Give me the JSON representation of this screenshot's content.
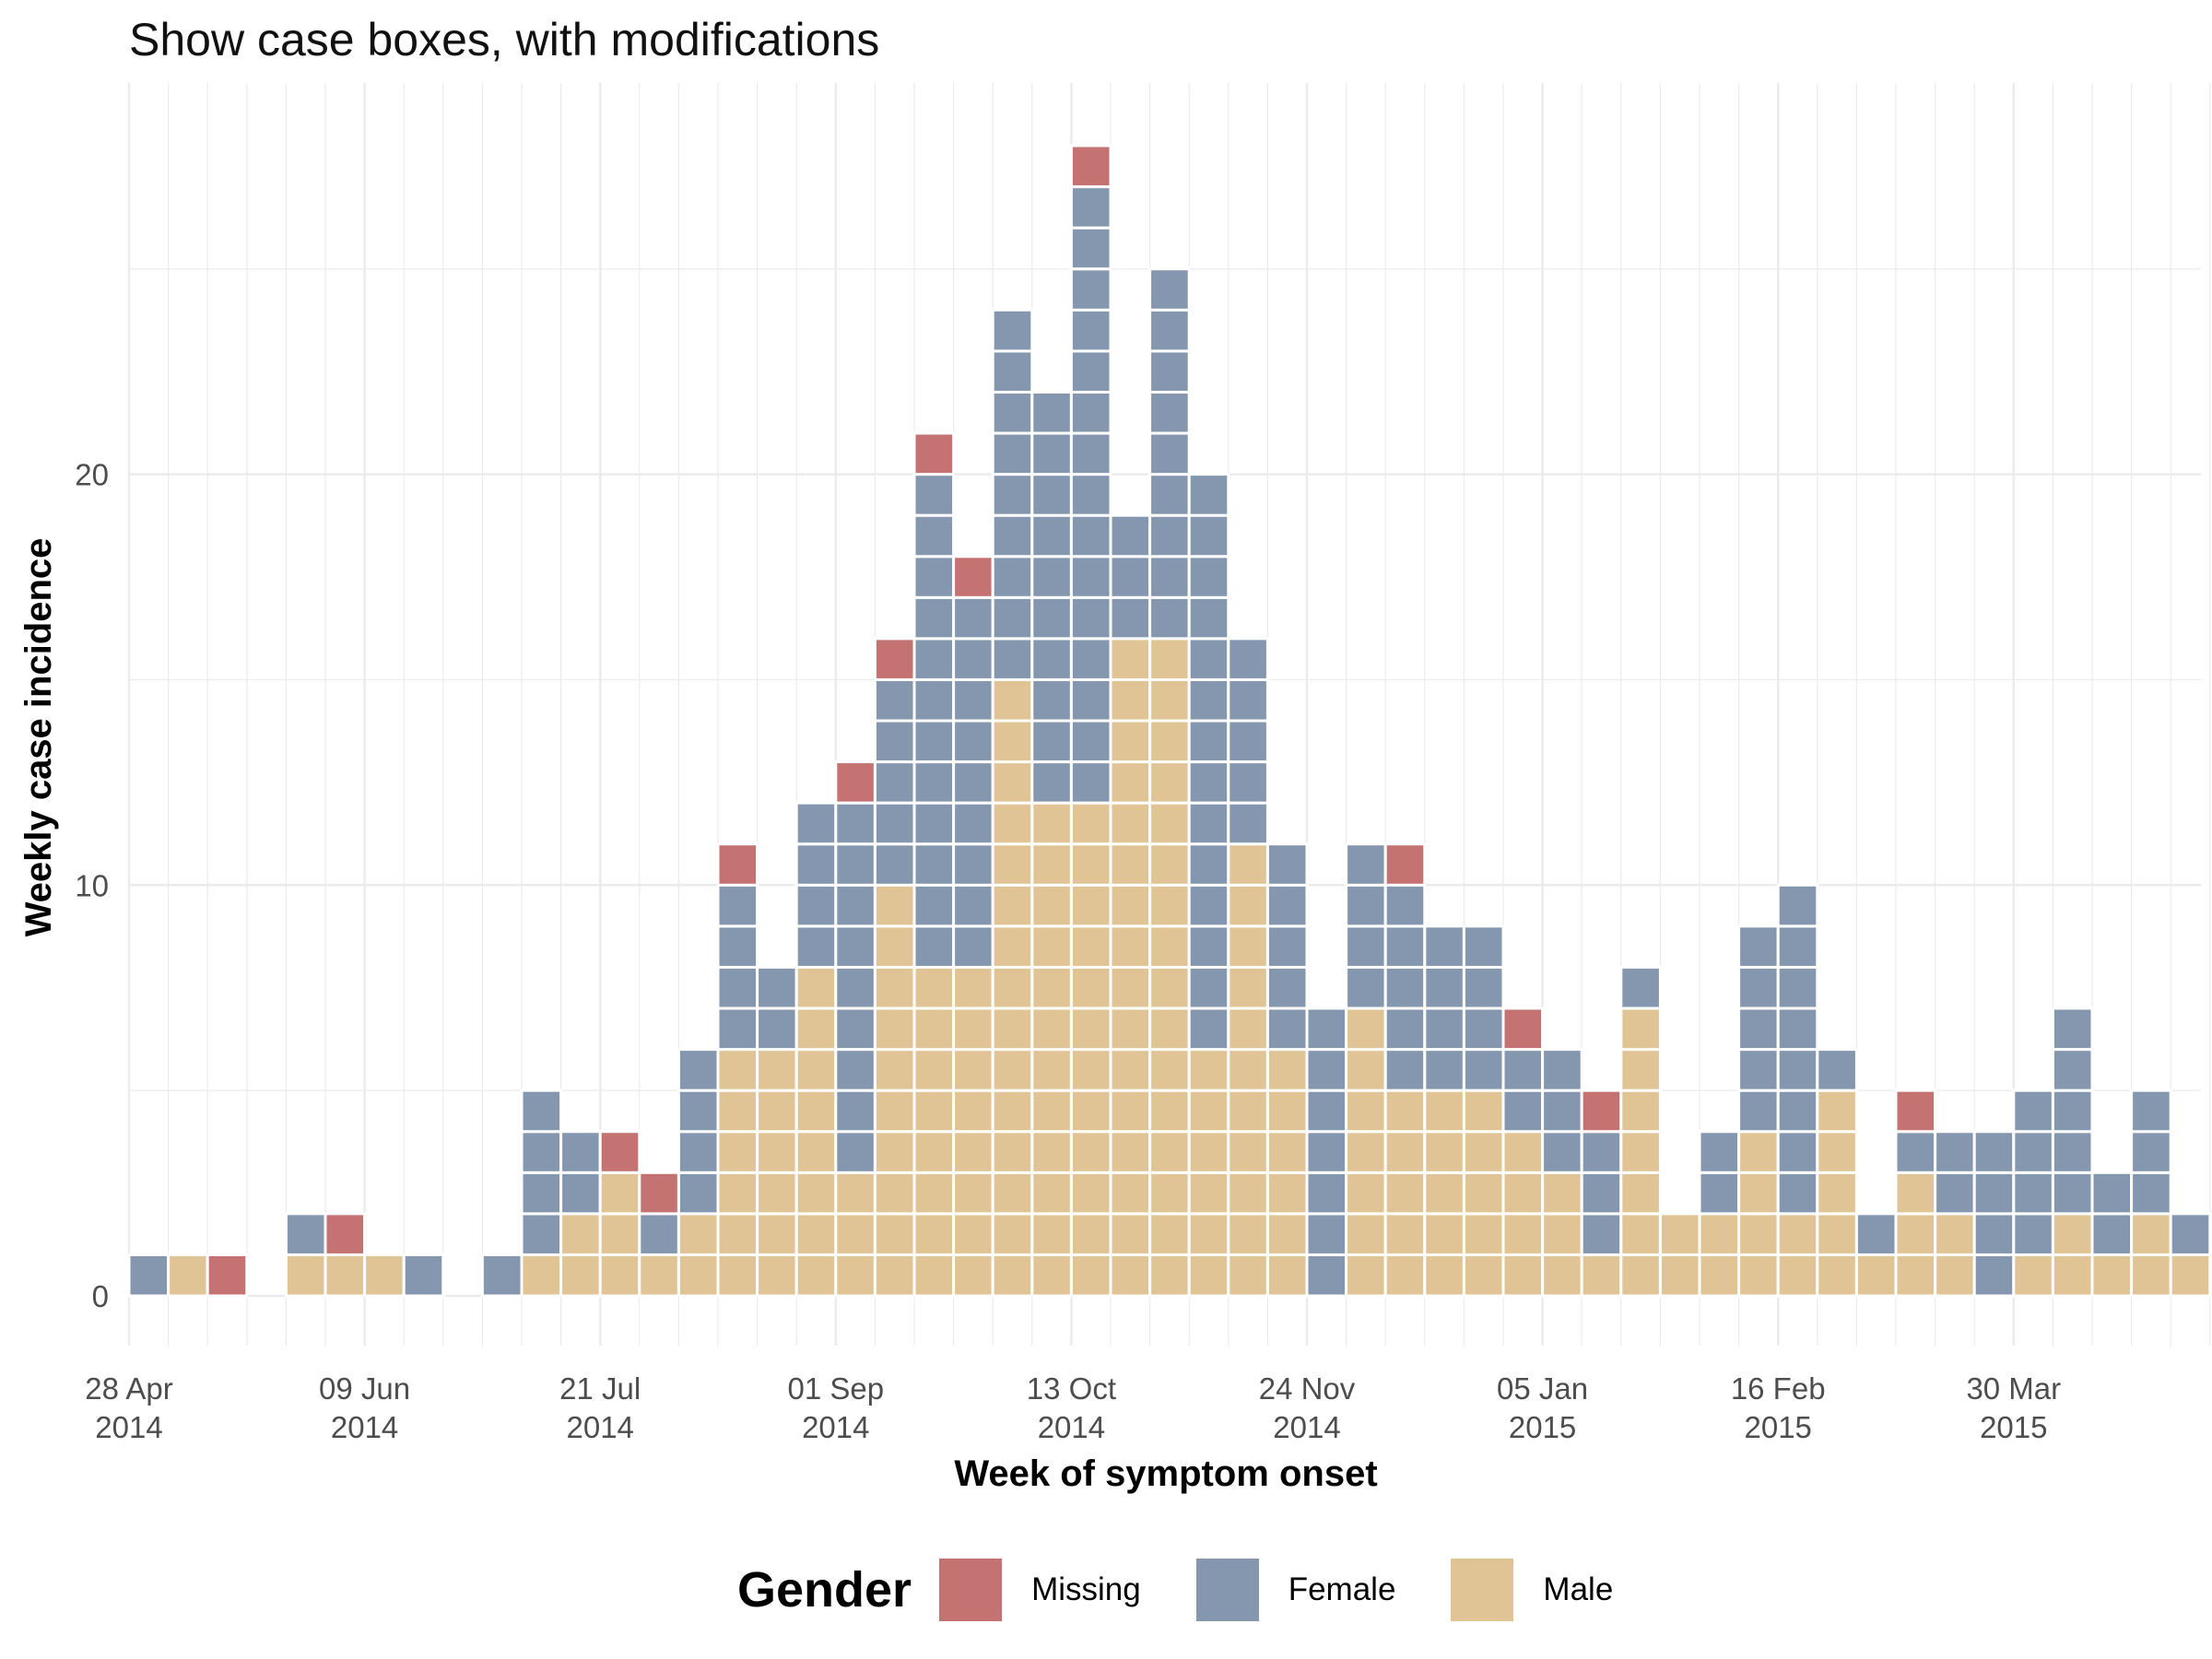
{
  "chart_data": {
    "type": "bar",
    "title": "Show case boxes, with modifications",
    "xlabel": "Week of symptom onset",
    "ylabel": "Weekly case incidence",
    "ylim": [
      0,
      28
    ],
    "y_ticks": [
      0,
      10,
      20
    ],
    "x_tick_labels": [
      {
        "week": 0,
        "line1": "28 Apr",
        "line2": "2014"
      },
      {
        "week": 6,
        "line1": "09 Jun",
        "line2": "2014"
      },
      {
        "week": 12,
        "line1": "21 Jul",
        "line2": "2014"
      },
      {
        "week": 18,
        "line1": "01 Sep",
        "line2": "2014"
      },
      {
        "week": 24,
        "line1": "13 Oct",
        "line2": "2014"
      },
      {
        "week": 30,
        "line1": "24 Nov",
        "line2": "2014"
      },
      {
        "week": 36,
        "line1": "05 Jan",
        "line2": "2015"
      },
      {
        "week": 42,
        "line1": "16 Feb",
        "line2": "2015"
      },
      {
        "week": 48,
        "line1": "30 Mar",
        "line2": "2015"
      }
    ],
    "first_week": "2014-04-28",
    "bar_width_days": 7,
    "legend": {
      "title": "Gender",
      "position": "bottom"
    },
    "grid": true,
    "series": [
      {
        "name": "Male",
        "color": "#E0C495",
        "values": [
          0,
          1,
          0,
          0,
          1,
          1,
          1,
          0,
          0,
          0,
          1,
          2,
          3,
          1,
          2,
          6,
          6,
          8,
          3,
          10,
          8,
          8,
          15,
          12,
          12,
          16,
          16,
          6,
          11,
          6,
          0,
          7,
          5,
          5,
          5,
          4,
          3,
          1,
          7,
          2,
          2,
          4,
          2,
          5,
          1,
          3,
          2,
          0,
          1,
          2,
          1,
          2,
          1
        ]
      },
      {
        "name": "Female",
        "color": "#8497AE",
        "values": [
          1,
          0,
          0,
          0,
          1,
          0,
          0,
          1,
          0,
          1,
          4,
          2,
          0,
          1,
          4,
          4,
          2,
          4,
          9,
          5,
          12,
          9,
          9,
          10,
          15,
          3,
          9,
          14,
          5,
          5,
          7,
          4,
          5,
          4,
          4,
          2,
          3,
          3,
          1,
          0,
          2,
          5,
          8,
          1,
          1,
          1,
          2,
          4,
          4,
          5,
          2,
          3,
          1
        ]
      },
      {
        "name": "Missing",
        "color": "#C47272",
        "values": [
          0,
          0,
          1,
          0,
          0,
          1,
          0,
          0,
          0,
          0,
          0,
          0,
          1,
          1,
          0,
          1,
          0,
          0,
          1,
          1,
          1,
          1,
          0,
          0,
          1,
          0,
          0,
          0,
          0,
          0,
          0,
          0,
          1,
          0,
          0,
          1,
          0,
          1,
          0,
          0,
          0,
          0,
          0,
          0,
          0,
          1,
          0,
          0,
          0,
          0,
          0,
          0,
          0
        ]
      }
    ]
  }
}
